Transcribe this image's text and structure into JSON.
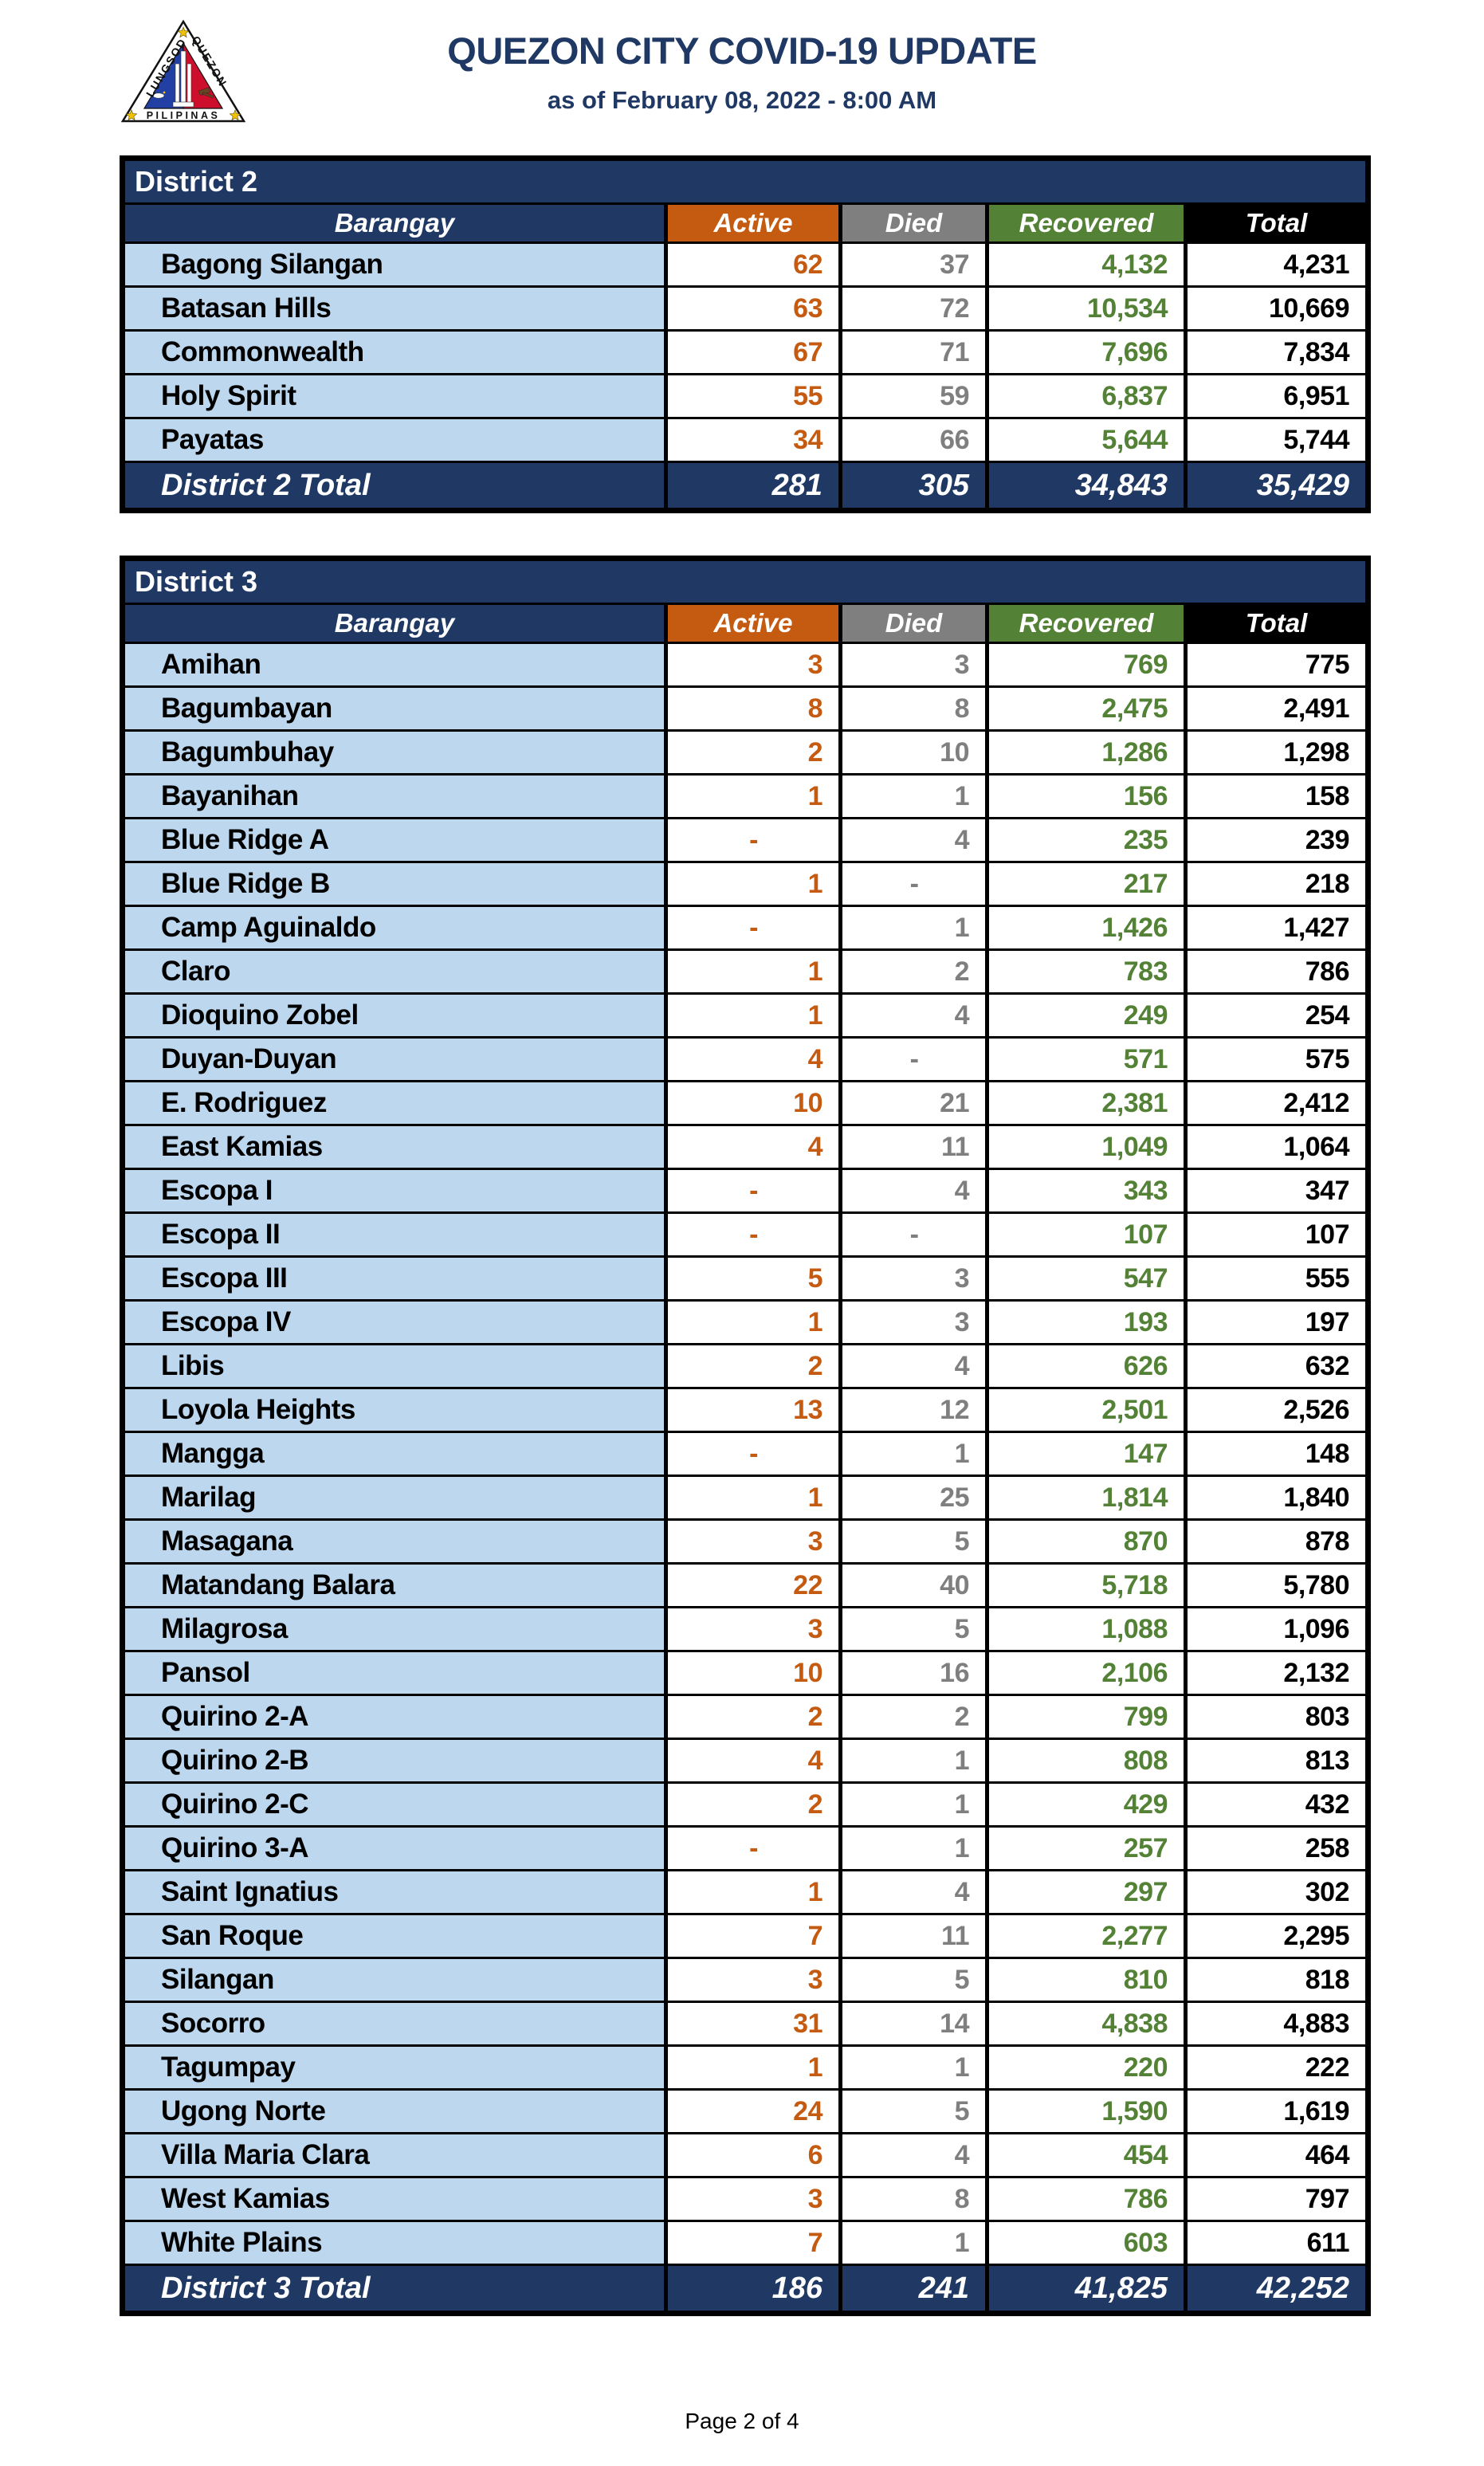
{
  "page": {
    "title": "QUEZON CITY COVID-19 UPDATE",
    "subtitle": "as of February 08, 2022 - 8:00 AM",
    "footer": "Page 2 of 4"
  },
  "logo": {
    "left_text": "LUNGSOD",
    "right_text": "QUEZON",
    "bottom_text": "PILIPINAS"
  },
  "colors": {
    "navy": "#1F3864",
    "active_orange": "#C55A11",
    "died_gray": "#7F7F7F",
    "recovered_green": "#538135",
    "total_black": "#000000",
    "row_blue": "#BDD7EE"
  },
  "columns": [
    {
      "key": "barangay",
      "label": "Barangay",
      "bg": "#1F3864",
      "fg": "#FFFFFF"
    },
    {
      "key": "active",
      "label": "Active",
      "bg": "#C55A11",
      "fg": "#FFFFFF"
    },
    {
      "key": "died",
      "label": "Died",
      "bg": "#7F7F7F",
      "fg": "#FFFFFF"
    },
    {
      "key": "recovered",
      "label": "Recovered",
      "bg": "#538135",
      "fg": "#FFFFFF"
    },
    {
      "key": "total",
      "label": "Total",
      "bg": "#000000",
      "fg": "#FFFFFF"
    }
  ],
  "value_colors": {
    "active": "#C55A11",
    "died": "#7F7F7F",
    "recovered": "#538135",
    "total": "#000000"
  },
  "tables": {
    "district2": {
      "title": "District 2",
      "rows": [
        {
          "barangay": "Bagong Silangan",
          "active": "62",
          "died": "37",
          "recovered": "4,132",
          "total": "4,231"
        },
        {
          "barangay": "Batasan Hills",
          "active": "63",
          "died": "72",
          "recovered": "10,534",
          "total": "10,669"
        },
        {
          "barangay": "Commonwealth",
          "active": "67",
          "died": "71",
          "recovered": "7,696",
          "total": "7,834"
        },
        {
          "barangay": "Holy Spirit",
          "active": "55",
          "died": "59",
          "recovered": "6,837",
          "total": "6,951"
        },
        {
          "barangay": "Payatas",
          "active": "34",
          "died": "66",
          "recovered": "5,644",
          "total": "5,744"
        }
      ],
      "total_row": {
        "label": "District 2 Total",
        "active": "281",
        "died": "305",
        "recovered": "34,843",
        "total": "35,429"
      }
    },
    "district3": {
      "title": "District 3",
      "rows": [
        {
          "barangay": "Amihan",
          "active": "3",
          "died": "3",
          "recovered": "769",
          "total": "775"
        },
        {
          "barangay": "Bagumbayan",
          "active": "8",
          "died": "8",
          "recovered": "2,475",
          "total": "2,491"
        },
        {
          "barangay": "Bagumbuhay",
          "active": "2",
          "died": "10",
          "recovered": "1,286",
          "total": "1,298"
        },
        {
          "barangay": "Bayanihan",
          "active": "1",
          "died": "1",
          "recovered": "156",
          "total": "158"
        },
        {
          "barangay": "Blue Ridge A",
          "active": "-",
          "died": "4",
          "recovered": "235",
          "total": "239"
        },
        {
          "barangay": "Blue Ridge B",
          "active": "1",
          "died": "-",
          "recovered": "217",
          "total": "218"
        },
        {
          "barangay": "Camp Aguinaldo",
          "active": "-",
          "died": "1",
          "recovered": "1,426",
          "total": "1,427"
        },
        {
          "barangay": "Claro",
          "active": "1",
          "died": "2",
          "recovered": "783",
          "total": "786"
        },
        {
          "barangay": "Dioquino Zobel",
          "active": "1",
          "died": "4",
          "recovered": "249",
          "total": "254"
        },
        {
          "barangay": "Duyan-Duyan",
          "active": "4",
          "died": "-",
          "recovered": "571",
          "total": "575"
        },
        {
          "barangay": "E. Rodriguez",
          "active": "10",
          "died": "21",
          "recovered": "2,381",
          "total": "2,412"
        },
        {
          "barangay": "East Kamias",
          "active": "4",
          "died": "11",
          "recovered": "1,049",
          "total": "1,064"
        },
        {
          "barangay": "Escopa I",
          "active": "-",
          "died": "4",
          "recovered": "343",
          "total": "347"
        },
        {
          "barangay": "Escopa II",
          "active": "-",
          "died": "-",
          "recovered": "107",
          "total": "107"
        },
        {
          "barangay": "Escopa III",
          "active": "5",
          "died": "3",
          "recovered": "547",
          "total": "555"
        },
        {
          "barangay": "Escopa IV",
          "active": "1",
          "died": "3",
          "recovered": "193",
          "total": "197"
        },
        {
          "barangay": "Libis",
          "active": "2",
          "died": "4",
          "recovered": "626",
          "total": "632"
        },
        {
          "barangay": "Loyola Heights",
          "active": "13",
          "died": "12",
          "recovered": "2,501",
          "total": "2,526"
        },
        {
          "barangay": "Mangga",
          "active": "-",
          "died": "1",
          "recovered": "147",
          "total": "148"
        },
        {
          "barangay": "Marilag",
          "active": "1",
          "died": "25",
          "recovered": "1,814",
          "total": "1,840"
        },
        {
          "barangay": "Masagana",
          "active": "3",
          "died": "5",
          "recovered": "870",
          "total": "878"
        },
        {
          "barangay": "Matandang Balara",
          "active": "22",
          "died": "40",
          "recovered": "5,718",
          "total": "5,780"
        },
        {
          "barangay": "Milagrosa",
          "active": "3",
          "died": "5",
          "recovered": "1,088",
          "total": "1,096"
        },
        {
          "barangay": "Pansol",
          "active": "10",
          "died": "16",
          "recovered": "2,106",
          "total": "2,132"
        },
        {
          "barangay": "Quirino 2-A",
          "active": "2",
          "died": "2",
          "recovered": "799",
          "total": "803"
        },
        {
          "barangay": "Quirino 2-B",
          "active": "4",
          "died": "1",
          "recovered": "808",
          "total": "813"
        },
        {
          "barangay": "Quirino 2-C",
          "active": "2",
          "died": "1",
          "recovered": "429",
          "total": "432"
        },
        {
          "barangay": "Quirino 3-A",
          "active": "-",
          "died": "1",
          "recovered": "257",
          "total": "258"
        },
        {
          "barangay": "Saint Ignatius",
          "active": "1",
          "died": "4",
          "recovered": "297",
          "total": "302"
        },
        {
          "barangay": "San Roque",
          "active": "7",
          "died": "11",
          "recovered": "2,277",
          "total": "2,295"
        },
        {
          "barangay": "Silangan",
          "active": "3",
          "died": "5",
          "recovered": "810",
          "total": "818"
        },
        {
          "barangay": "Socorro",
          "active": "31",
          "died": "14",
          "recovered": "4,838",
          "total": "4,883"
        },
        {
          "barangay": "Tagumpay",
          "active": "1",
          "died": "1",
          "recovered": "220",
          "total": "222"
        },
        {
          "barangay": "Ugong Norte",
          "active": "24",
          "died": "5",
          "recovered": "1,590",
          "total": "1,619"
        },
        {
          "barangay": "Villa Maria Clara",
          "active": "6",
          "died": "4",
          "recovered": "454",
          "total": "464"
        },
        {
          "barangay": "West Kamias",
          "active": "3",
          "died": "8",
          "recovered": "786",
          "total": "797"
        },
        {
          "barangay": "White Plains",
          "active": "7",
          "died": "1",
          "recovered": "603",
          "total": "611"
        }
      ],
      "total_row": {
        "label": "District 3 Total",
        "active": "186",
        "died": "241",
        "recovered": "41,825",
        "total": "42,252"
      }
    }
  }
}
